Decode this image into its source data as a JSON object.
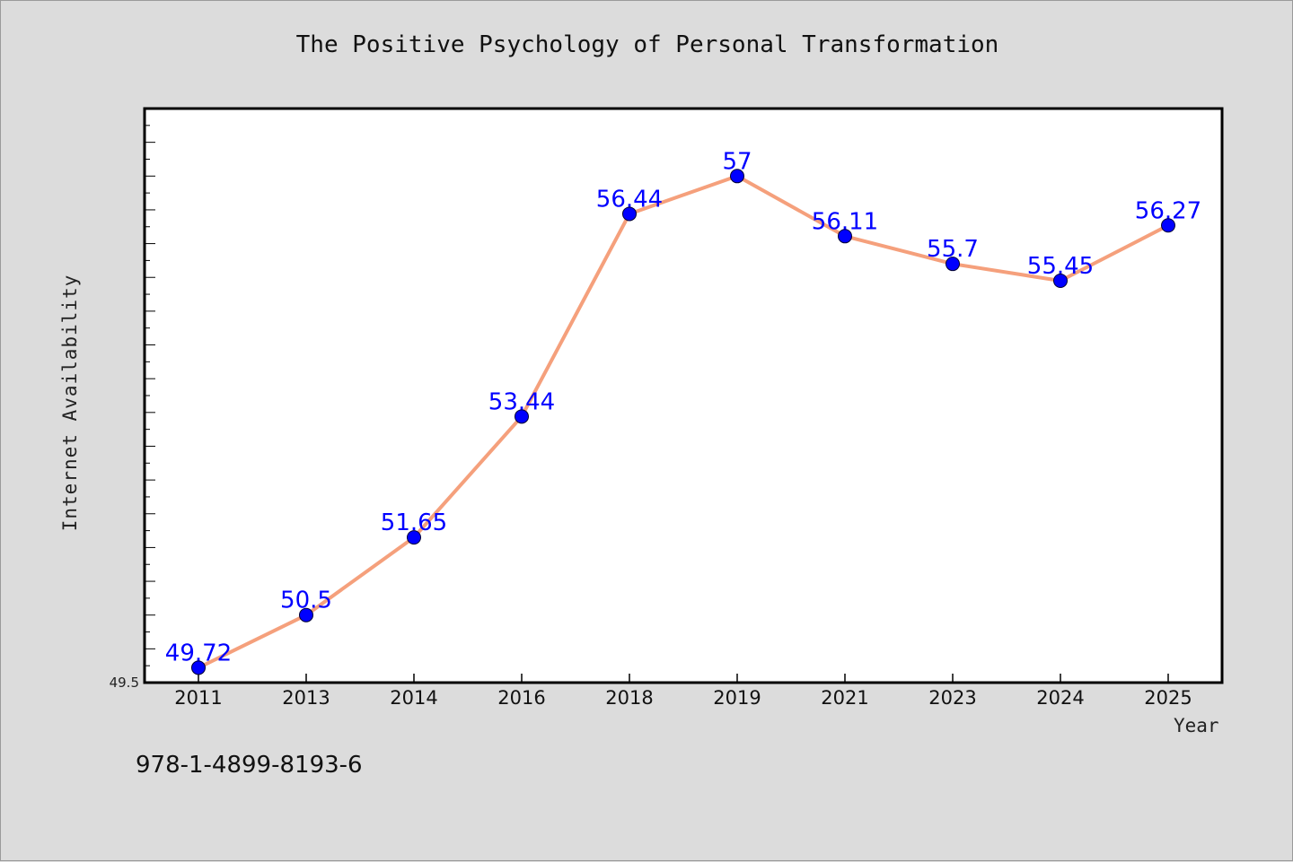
{
  "chart_data": {
    "type": "line",
    "title": "The Positive Psychology of Personal Transformation",
    "xlabel": "Year",
    "ylabel": "Internet Availability",
    "categories": [
      "2011",
      "2013",
      "2014",
      "2016",
      "2018",
      "2019",
      "2021",
      "2023",
      "2024",
      "2025"
    ],
    "values": [
      49.72,
      50.5,
      51.65,
      53.44,
      56.44,
      57,
      56.11,
      55.7,
      55.45,
      56.27
    ],
    "data_labels": [
      "49.72",
      "50.5",
      "51.65",
      "53.44",
      "56.44",
      "57",
      "56.11",
      "55.7",
      "55.45",
      "56.27"
    ],
    "ylim": [
      49.5,
      58
    ],
    "y_tick_labels": [
      "49.5"
    ],
    "grid": false,
    "colors": {
      "line": "#f5a07c",
      "marker": "#0000ff",
      "data_label": "#0000ff",
      "plot_background": "#ffffff",
      "figure_background": "#dcdcdc"
    }
  },
  "footer": {
    "note": "978-1-4899-8193-6"
  }
}
